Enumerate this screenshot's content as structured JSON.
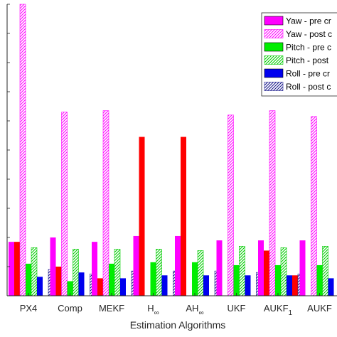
{
  "chart_data": {
    "type": "bar",
    "xlabel": "Estimation Algorithms",
    "ylabel": "",
    "ylim": [
      0,
      100
    ],
    "grid": false,
    "legend_position": "top-right",
    "categories": [
      "PX4",
      "Comp",
      "MEKF",
      "H∞",
      "AH∞",
      "UKF",
      "AUKF1",
      "AUKF"
    ],
    "category_labels": [
      {
        "main": "PX4",
        "sub": "",
        "sup": ""
      },
      {
        "main": "Comp",
        "sub": "",
        "sup": ""
      },
      {
        "main": "MEKF",
        "sub": "",
        "sup": ""
      },
      {
        "main": "H",
        "sub": "∞",
        "sup": ""
      },
      {
        "main": "AH",
        "sub": "∞",
        "sup": ""
      },
      {
        "main": "UKF",
        "sub": "",
        "sup": ""
      },
      {
        "main": "AUKF",
        "sub": "1",
        "sup": ""
      },
      {
        "main": "AUKF",
        "sub": "",
        "sup": ""
      }
    ],
    "series": [
      {
        "name": "Yaw - pre cr",
        "color": "#ff00ff",
        "pattern": "solid",
        "values": [
          18.5,
          20.0,
          18.5,
          20.5,
          20.5,
          19.0,
          19.0,
          19.0
        ]
      },
      {
        "name": "Yaw - post c",
        "color": "#ff00ff",
        "pattern": "hatch",
        "values": [
          100.0,
          63.0,
          63.5,
          0,
          0,
          62.0,
          63.5,
          61.5
        ]
      },
      {
        "name": "Pitch - pre c",
        "color": "#00ee00",
        "pattern": "solid",
        "values": [
          11.0,
          5.0,
          11.0,
          11.5,
          11.5,
          10.5,
          10.5,
          10.5
        ]
      },
      {
        "name": "Pitch - post",
        "color": "#00cc00",
        "pattern": "hatch",
        "values": [
          16.5,
          16.0,
          16.0,
          16.0,
          15.5,
          17.0,
          16.5,
          17.0
        ]
      },
      {
        "name": "Roll - pre cr",
        "color": "#0000ee",
        "pattern": "solid",
        "values": [
          6.5,
          8.0,
          6.0,
          7.0,
          7.0,
          7.0,
          7.0,
          6.0
        ]
      },
      {
        "name": "Roll - post c",
        "color": "#1a1a8c",
        "pattern": "hatch",
        "values": [
          9.0,
          7.5,
          8.5,
          8.5,
          8.5,
          8.0,
          7.5,
          8.5
        ]
      },
      {
        "name": "",
        "color": "#ff0000",
        "pattern": "solid",
        "legend": false,
        "values": [
          18.5,
          10.0,
          6.0,
          54.5,
          54.5,
          0,
          15.5,
          0
        ]
      },
      {
        "name": "",
        "color": "#ff0000",
        "pattern": "solid",
        "legend": false,
        "values": [
          0,
          0,
          0,
          0,
          0,
          0,
          7.0,
          0
        ]
      }
    ]
  }
}
